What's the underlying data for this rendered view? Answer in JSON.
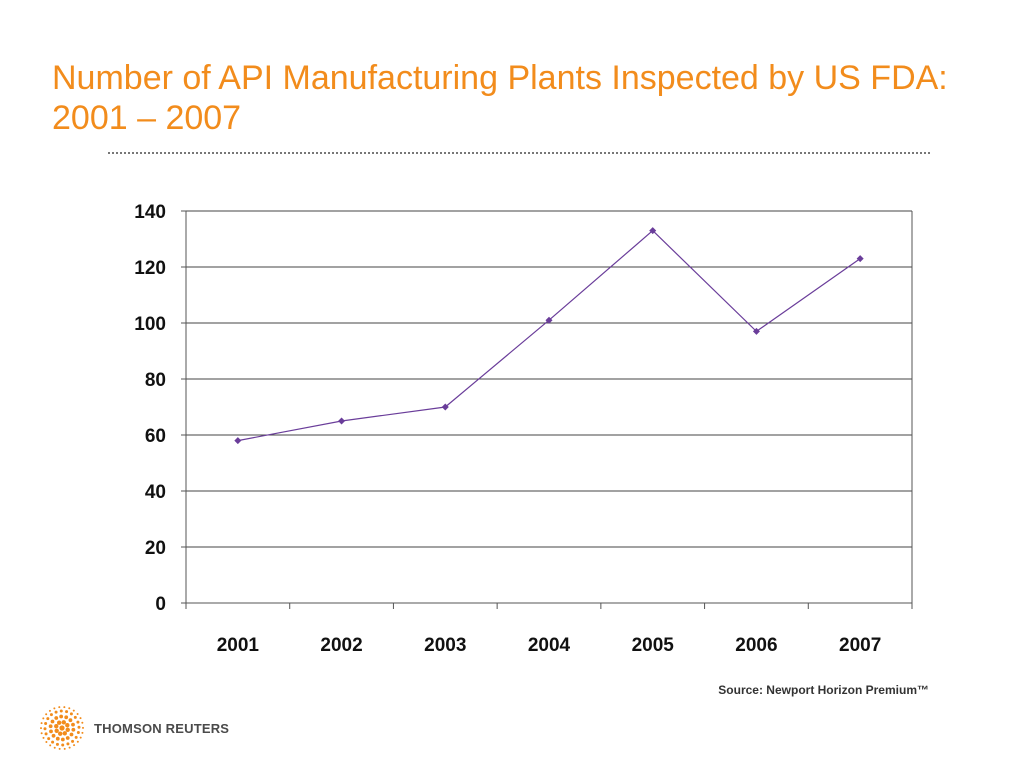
{
  "slide": {
    "title": "Number of API Manufacturing Plants Inspected by US FDA: 2001 – 2007",
    "source": "Source: Newport Horizon Premium™",
    "logo_text": "THOMSON REUTERS"
  },
  "colors": {
    "title": "#f28c1c",
    "series": "#6a3d9a",
    "axis": "#555555",
    "grid": "#444444",
    "logo": "#f28c1c"
  },
  "icons": {
    "logo": "thomson-reuters-dot-sphere-icon"
  },
  "chart_data": {
    "type": "line",
    "title": "",
    "xlabel": "",
    "ylabel": "",
    "categories": [
      "2001",
      "2002",
      "2003",
      "2004",
      "2005",
      "2006",
      "2007"
    ],
    "series": [
      {
        "values": [
          58,
          65,
          70,
          101,
          133,
          97,
          123
        ]
      }
    ],
    "ylim": [
      0,
      140
    ],
    "yticks": [
      0,
      20,
      40,
      60,
      80,
      100,
      120,
      140
    ],
    "grid": true,
    "legend": "none"
  }
}
